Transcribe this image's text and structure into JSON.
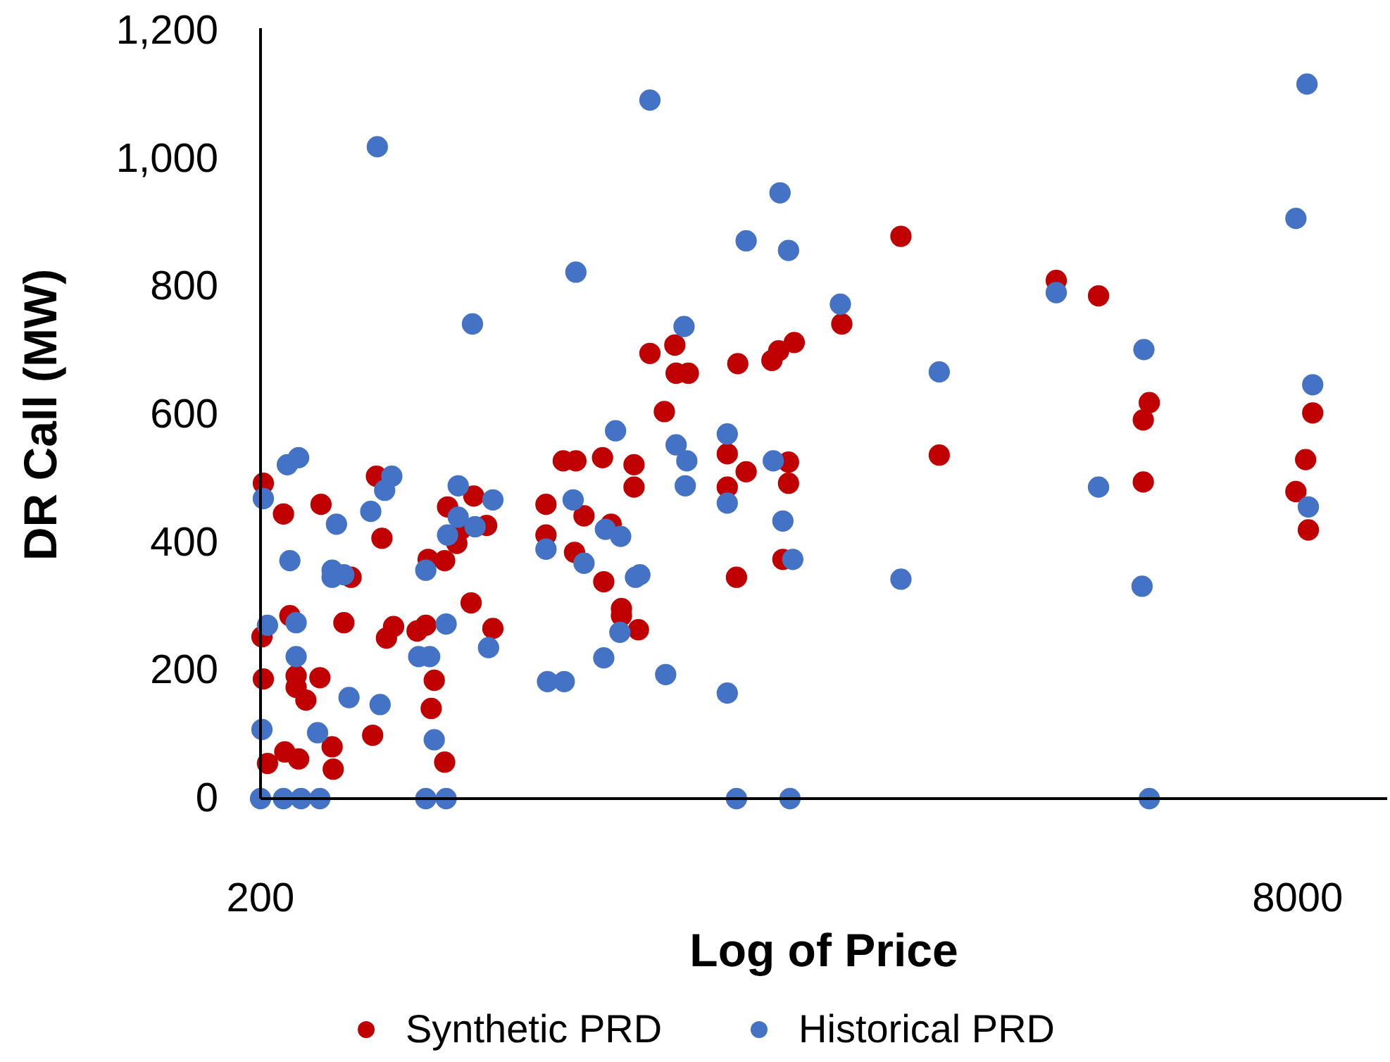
{
  "chart_data": {
    "type": "scatter",
    "xlabel": "Log of Price",
    "ylabel": "DR Call (MW)",
    "log": "x",
    "xlim": [
      200,
      11000
    ],
    "xticks": [
      200,
      8000
    ],
    "ylim": [
      0,
      1200
    ],
    "yticks": [
      0,
      200,
      400,
      600,
      800,
      {
        "value": 1000,
        "label": "1,000"
      },
      {
        "value": 1200,
        "label": "1,200"
      }
    ],
    "grid": false,
    "legend": "bottom",
    "marker": "circle",
    "series": [
      {
        "name": "Synthetic PRD",
        "color": "#c00000",
        "x": [
          202,
          201,
          202,
          205,
          217,
          222,
          227,
          227,
          218,
          229,
          235,
          247,
          248,
          258,
          259,
          269,
          276,
          298,
          302,
          308,
          313,
          321,
          349,
          360,
          363,
          367,
          371,
          385,
          385,
          389,
          402,
          408,
          423,
          427,
          447,
          457,
          552,
          552,
          587,
          614,
          611,
          632,
          675,
          678,
          696,
          755,
          755,
          722,
          722,
          767,
          799,
          841,
          873,
          877,
          916,
          1052,
          1052,
          1087,
          1092,
          1125,
          1233,
          1263,
          1335,
          1308,
          1308,
          1282,
          1581,
          1951,
          2236,
          3390,
          3940,
          4620,
          4620,
          4720,
          7950,
          8230,
          8310,
          8440
        ],
        "values": [
          493,
          253,
          187,
          55,
          445,
          286,
          192,
          174,
          73,
          62,
          154,
          189,
          460,
          81,
          46,
          275,
          346,
          99,
          504,
          407,
          251,
          269,
          262,
          271,
          374,
          141,
          185,
          372,
          57,
          456,
          399,
          421,
          306,
          473,
          427,
          266,
          460,
          412,
          528,
          528,
          385,
          442,
          533,
          339,
          429,
          487,
          522,
          297,
          286,
          264,
          696,
          605,
          709,
          665,
          665,
          539,
          487,
          346,
          680,
          511,
          685,
          700,
          713,
          526,
          493,
          374,
          742,
          879,
          537,
          810,
          786,
          495,
          592,
          619,
          480,
          530,
          420,
          603
        ]
      },
      {
        "name": "Historical PRD",
        "color": "#4472c4",
        "x": [
          200,
          201,
          205,
          202,
          217,
          220,
          229,
          227,
          222,
          227,
          231,
          247,
          245,
          262,
          258,
          258,
          269,
          274,
          303,
          306,
          296,
          311,
          319,
          351,
          360,
          365,
          371,
          360,
          387,
          387,
          389,
          404,
          404,
          425,
          429,
          450,
          457,
          552,
          555,
          589,
          614,
          608,
          632,
          678,
          682,
          720,
          718,
          707,
          759,
          771,
          799,
          845,
          877,
          902,
          906,
          911,
          1052,
          1052,
          1052,
          1087,
          1125,
          1269,
          1308,
          1239,
          1282,
          1328,
          1315,
          1573,
          1951,
          2236,
          3390,
          3940,
          4600,
          4630,
          4720,
          7950,
          8270,
          8440,
          8310
        ],
        "values": [
          0,
          108,
          271,
          469,
          0,
          522,
          533,
          275,
          372,
          222,
          0,
          0,
          103,
          429,
          357,
          346,
          350,
          158,
          1019,
          147,
          449,
          482,
          504,
          222,
          357,
          222,
          92,
          0,
          0,
          273,
          412,
          440,
          489,
          742,
          425,
          236,
          467,
          390,
          183,
          183,
          823,
          467,
          368,
          220,
          421,
          410,
          260,
          575,
          346,
          350,
          1092,
          194,
          553,
          738,
          489,
          528,
          570,
          462,
          165,
          0,
          872,
          947,
          857,
          528,
          434,
          374,
          0,
          773,
          343,
          667,
          791,
          487,
          332,
          702,
          0,
          907,
          1117,
          647,
          456
        ]
      }
    ]
  }
}
